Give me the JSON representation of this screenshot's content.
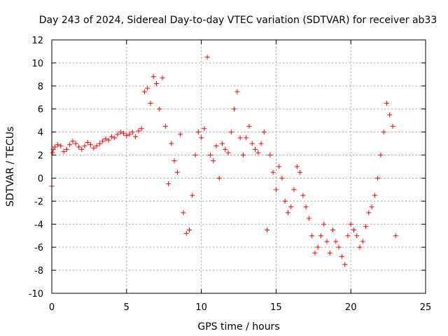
{
  "chart_data": {
    "type": "scatter",
    "title": "Day 243 of 2024, Sidereal Day-to-day VTEC variation (SDTVAR) for receiver ab33",
    "xlabel": "GPS time / hours",
    "ylabel": "SDTVAR / TECUs",
    "xlim": [
      0,
      25
    ],
    "ylim": [
      -10,
      12
    ],
    "xticks": [
      0,
      5,
      10,
      15,
      20,
      25
    ],
    "yticks": [
      -10,
      -8,
      -6,
      -4,
      -2,
      0,
      2,
      4,
      6,
      8,
      10,
      12
    ],
    "grid": true,
    "marker": "+",
    "color": "#ff0000",
    "series": [
      {
        "name": "SDTVAR",
        "x": [
          0.0,
          0.05,
          0.1,
          0.2,
          0.4,
          0.6,
          0.8,
          1.0,
          1.2,
          1.4,
          1.6,
          1.8,
          2.0,
          2.2,
          2.4,
          2.6,
          2.8,
          3.0,
          3.2,
          3.4,
          3.6,
          3.8,
          4.0,
          4.2,
          4.4,
          4.6,
          4.8,
          5.0,
          5.2,
          5.4,
          5.6,
          5.8,
          6.0,
          6.2,
          6.4,
          6.6,
          6.8,
          7.0,
          7.2,
          7.4,
          7.6,
          7.8,
          8.0,
          8.2,
          8.4,
          8.6,
          8.8,
          9.0,
          9.2,
          9.4,
          9.6,
          9.8,
          10.0,
          10.2,
          10.4,
          10.6,
          10.8,
          11.0,
          11.2,
          11.4,
          11.6,
          11.8,
          12.0,
          12.2,
          12.4,
          12.6,
          12.8,
          13.0,
          13.2,
          13.4,
          13.6,
          13.8,
          14.0,
          14.2,
          14.4,
          14.6,
          14.8,
          15.0,
          15.2,
          15.4,
          15.6,
          15.8,
          16.0,
          16.2,
          16.4,
          16.6,
          16.8,
          17.0,
          17.2,
          17.4,
          17.6,
          17.8,
          18.0,
          18.2,
          18.4,
          18.6,
          18.8,
          19.0,
          19.2,
          19.4,
          19.6,
          19.8,
          20.0,
          20.2,
          20.4,
          20.6,
          20.8,
          21.0,
          21.2,
          21.4,
          21.6,
          21.8,
          22.0,
          22.2,
          22.4,
          22.6,
          22.8,
          23.0
        ],
        "y": [
          -0.7,
          2.2,
          2.5,
          2.7,
          2.9,
          2.8,
          2.3,
          2.5,
          2.9,
          3.2,
          3.0,
          2.7,
          2.5,
          2.8,
          3.1,
          2.9,
          2.6,
          2.8,
          3.0,
          3.2,
          3.4,
          3.3,
          3.6,
          3.5,
          3.8,
          4.0,
          3.9,
          3.7,
          3.8,
          4.0,
          3.6,
          4.1,
          4.3,
          7.5,
          7.8,
          6.5,
          8.8,
          8.2,
          6.0,
          8.7,
          4.5,
          -0.5,
          3.0,
          1.5,
          0.5,
          3.8,
          -3.0,
          -4.8,
          -4.5,
          -1.5,
          2.0,
          4.0,
          3.5,
          4.3,
          10.5,
          2.0,
          1.5,
          2.8,
          0.0,
          3.0,
          2.5,
          2.2,
          4.0,
          6.0,
          7.5,
          3.5,
          2.0,
          3.5,
          4.5,
          3.0,
          2.5,
          2.2,
          3.0,
          4.0,
          -4.5,
          2.0,
          0.5,
          -1.0,
          1.0,
          0.0,
          -2.0,
          -3.0,
          -2.5,
          -1.0,
          1.0,
          0.5,
          -1.5,
          -2.5,
          -3.5,
          -5.0,
          -6.5,
          -6.0,
          -5.0,
          -4.0,
          -5.5,
          -6.5,
          -4.5,
          -5.5,
          -6.0,
          -6.8,
          -7.5,
          -5.0,
          -4.0,
          -4.5,
          -5.0,
          -6.0,
          -5.5,
          -4.2,
          -3.0,
          -2.5,
          -1.5,
          0.0,
          2.0,
          4.0,
          6.5,
          5.5,
          4.5,
          -5.0
        ]
      }
    ]
  }
}
